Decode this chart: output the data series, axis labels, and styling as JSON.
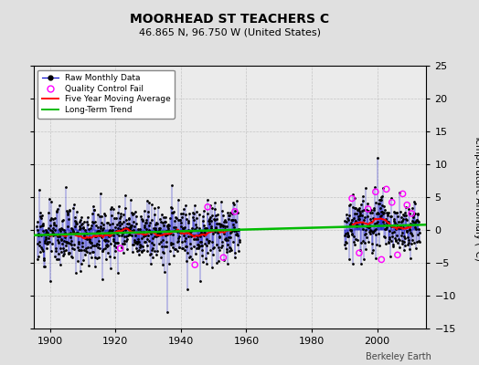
{
  "title": "MOORHEAD ST TEACHERS C",
  "subtitle": "46.865 N, 96.750 W (United States)",
  "credit": "Berkeley Earth",
  "ylabel": "Temperature Anomaly (°C)",
  "ylim": [
    -15,
    25
  ],
  "xlim": [
    1895,
    2015
  ],
  "yticks": [
    -15,
    -10,
    -5,
    0,
    5,
    10,
    15,
    20,
    25
  ],
  "xticks": [
    1900,
    1920,
    1940,
    1960,
    1980,
    2000
  ],
  "bg_color": "#e0e0e0",
  "plot_bg_color": "#ebebeb",
  "raw_color": "#0000cc",
  "ma_color": "#ff0000",
  "trend_color": "#00bb00",
  "qc_color": "#ff00ff",
  "seed": 12
}
